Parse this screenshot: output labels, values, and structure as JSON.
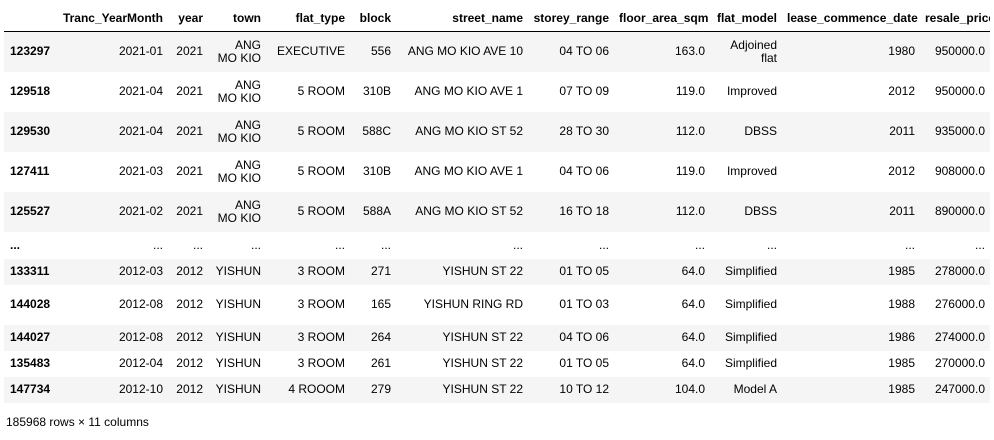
{
  "table": {
    "columns": [
      "",
      "Tranc_YearMonth",
      "year",
      "town",
      "flat_type",
      "block",
      "street_name",
      "storey_range",
      "floor_area_sqm",
      "flat_model",
      "lease_commence_date",
      "resale_price"
    ],
    "rows": [
      [
        "123297",
        "2021-01",
        "2021",
        "ANG MO KIO",
        "EXECUTIVE",
        "556",
        "ANG MO KIO AVE 10",
        "04 TO 06",
        "163.0",
        "Adjoined flat",
        "1980",
        "950000.0"
      ],
      [
        "129518",
        "2021-04",
        "2021",
        "ANG MO KIO",
        "5 ROOM",
        "310B",
        "ANG MO KIO AVE 1",
        "07 TO 09",
        "119.0",
        "Improved",
        "2012",
        "950000.0"
      ],
      [
        "129530",
        "2021-04",
        "2021",
        "ANG MO KIO",
        "5 ROOM",
        "588C",
        "ANG MO KIO ST 52",
        "28 TO 30",
        "112.0",
        "DBSS",
        "2011",
        "935000.0"
      ],
      [
        "127411",
        "2021-03",
        "2021",
        "ANG MO KIO",
        "5 ROOM",
        "310B",
        "ANG MO KIO AVE 1",
        "04 TO 06",
        "119.0",
        "Improved",
        "2012",
        "908000.0"
      ],
      [
        "125527",
        "2021-02",
        "2021",
        "ANG MO KIO",
        "5 ROOM",
        "588A",
        "ANG MO KIO ST 52",
        "16 TO 18",
        "112.0",
        "DBSS",
        "2011",
        "890000.0"
      ],
      [
        "...",
        "...",
        "...",
        "...",
        "...",
        "...",
        "...",
        "...",
        "...",
        "...",
        "...",
        "..."
      ],
      [
        "133311",
        "2012-03",
        "2012",
        "YISHUN",
        "3 ROOM",
        "271",
        "YISHUN ST 22",
        "01 TO 05",
        "64.0",
        "Simplified",
        "1985",
        "278000.0"
      ],
      [
        "144028",
        "2012-08",
        "2012",
        "YISHUN",
        "3 ROOM",
        "165",
        "YISHUN RING RD",
        "01 TO 03",
        "64.0",
        "Simplified",
        "1988",
        "276000.0"
      ],
      [
        "144027",
        "2012-08",
        "2012",
        "YISHUN",
        "3 ROOM",
        "264",
        "YISHUN ST 22",
        "04 TO 06",
        "64.0",
        "Simplified",
        "1986",
        "274000.0"
      ],
      [
        "135483",
        "2012-04",
        "2012",
        "YISHUN",
        "3 ROOM",
        "261",
        "YISHUN ST 22",
        "01 TO 05",
        "64.0",
        "Simplified",
        "1985",
        "270000.0"
      ],
      [
        "147734",
        "2012-10",
        "2012",
        "YISHUN",
        "4 ROOOM",
        "279",
        "YISHUN ST 22",
        "10 TO 12",
        "104.0",
        "Model A",
        "1985",
        "247000.0"
      ]
    ],
    "row_kinds": [
      "double",
      "double",
      "double",
      "double",
      "double",
      "ellipsis",
      "single",
      "double",
      "single",
      "single",
      "single"
    ],
    "column_names": [
      "index",
      "tranc-yearmonth",
      "year",
      "town",
      "flat-type",
      "block",
      "street-name",
      "storey-range",
      "floor-area-sqm",
      "flat-model",
      "lease-commence-date",
      "resale-price"
    ]
  },
  "footer": {
    "summary": "185968 rows × 11 columns"
  }
}
